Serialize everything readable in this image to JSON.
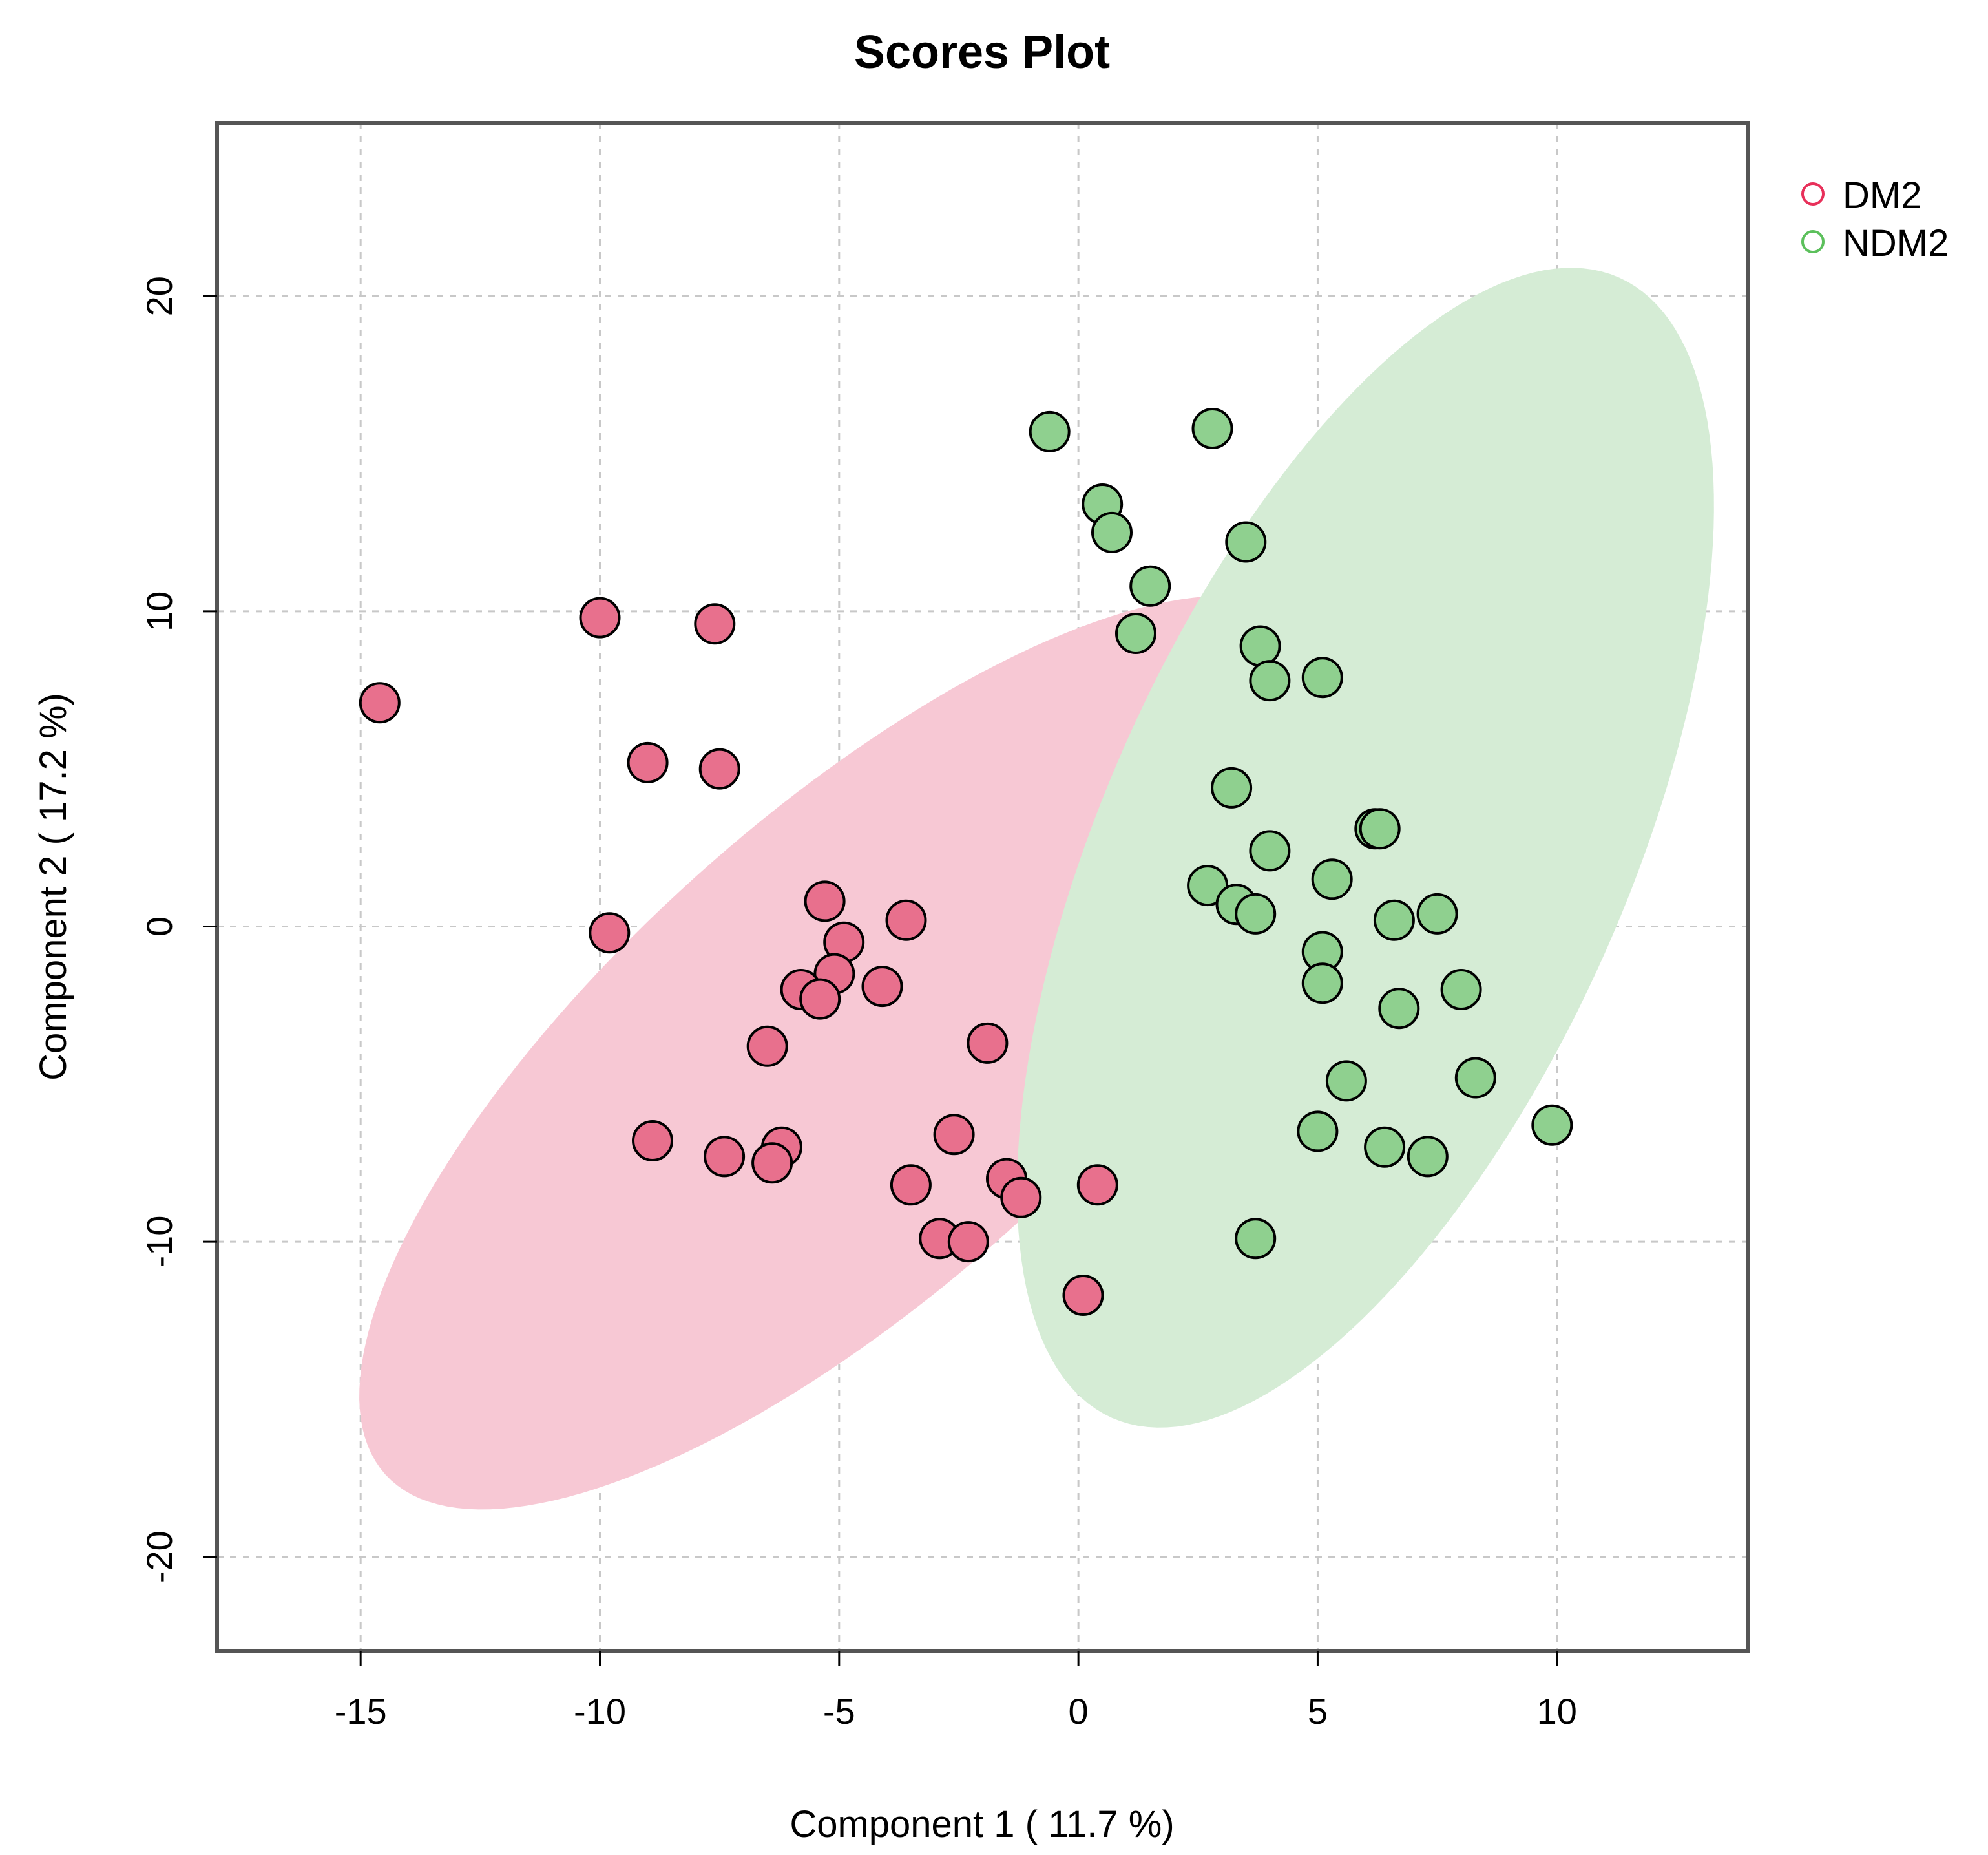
{
  "chart_data": {
    "type": "scatter",
    "title": "Scores Plot",
    "xlabel": "Component 1 ( 11.7 %)",
    "ylabel": "Component 2 ( 17.2 %)",
    "xlim": [
      -18,
      14
    ],
    "ylim": [
      -23,
      25.5
    ],
    "xticks": [
      -15,
      -10,
      -5,
      0,
      5,
      10
    ],
    "yticks": [
      -20,
      -10,
      0,
      10,
      20
    ],
    "xtick_labels": [
      "-15",
      "-10",
      "-5",
      "0",
      "5",
      "10"
    ],
    "ytick_labels": [
      "-20",
      "-10",
      "0",
      "10",
      "20"
    ],
    "grid": true,
    "legend_position": "top-right, outside plot",
    "series": [
      {
        "name": "DM2",
        "point_color": "#e8708d",
        "legend_color": "#e8305a",
        "ellipse_color": "#f7c8d4",
        "ellipse": {
          "center": [
            -4.7,
            -4.0
          ],
          "semi_major": 20.0,
          "semi_minor": 7.5,
          "angle_deg": 42
        },
        "x": [
          -14.6,
          -10.0,
          -7.6,
          -9.0,
          -7.5,
          -9.8,
          -5.3,
          -3.6,
          -4.9,
          -5.1,
          -5.8,
          -5.4,
          -4.1,
          -6.5,
          -1.9,
          -8.9,
          -7.4,
          -6.2,
          -6.4,
          -2.6,
          -3.5,
          -1.5,
          -1.2,
          0.4,
          -2.9,
          -2.3,
          0.1
        ],
        "y": [
          7.1,
          9.8,
          9.6,
          5.2,
          5.0,
          -0.2,
          0.8,
          0.2,
          -0.5,
          -1.5,
          -2.0,
          -2.3,
          -1.9,
          -3.8,
          -3.7,
          -6.8,
          -7.3,
          -7.0,
          -7.5,
          -6.6,
          -8.2,
          -8.0,
          -8.6,
          -8.2,
          -9.9,
          -10.0,
          -11.7
        ]
      },
      {
        "name": "NDM2",
        "point_color": "#8fd08f",
        "legend_color": "#5cc05c",
        "ellipse_color": "#d5ecd5",
        "ellipse": {
          "center": [
            6.0,
            2.5
          ],
          "semi_major": 19.8,
          "semi_minor": 8.3,
          "angle_deg": 66
        },
        "x": [
          -0.6,
          2.8,
          0.5,
          0.7,
          3.5,
          1.5,
          1.2,
          3.8,
          4.0,
          5.1,
          3.2,
          6.2,
          6.3,
          4.0,
          5.3,
          2.7,
          3.3,
          3.7,
          6.6,
          7.5,
          5.1,
          5.1,
          8.0,
          6.7,
          5.6,
          8.3,
          9.9,
          5.0,
          6.4,
          7.3,
          3.7
        ],
        "y": [
          15.7,
          15.8,
          13.4,
          12.5,
          12.2,
          10.8,
          9.3,
          8.9,
          7.8,
          7.9,
          4.4,
          3.1,
          3.1,
          2.4,
          1.5,
          1.3,
          0.7,
          0.4,
          0.2,
          0.4,
          -0.8,
          -1.8,
          -2.0,
          -2.6,
          -4.9,
          -4.8,
          -6.3,
          -6.5,
          -7.0,
          -7.3,
          -9.9
        ]
      }
    ]
  }
}
